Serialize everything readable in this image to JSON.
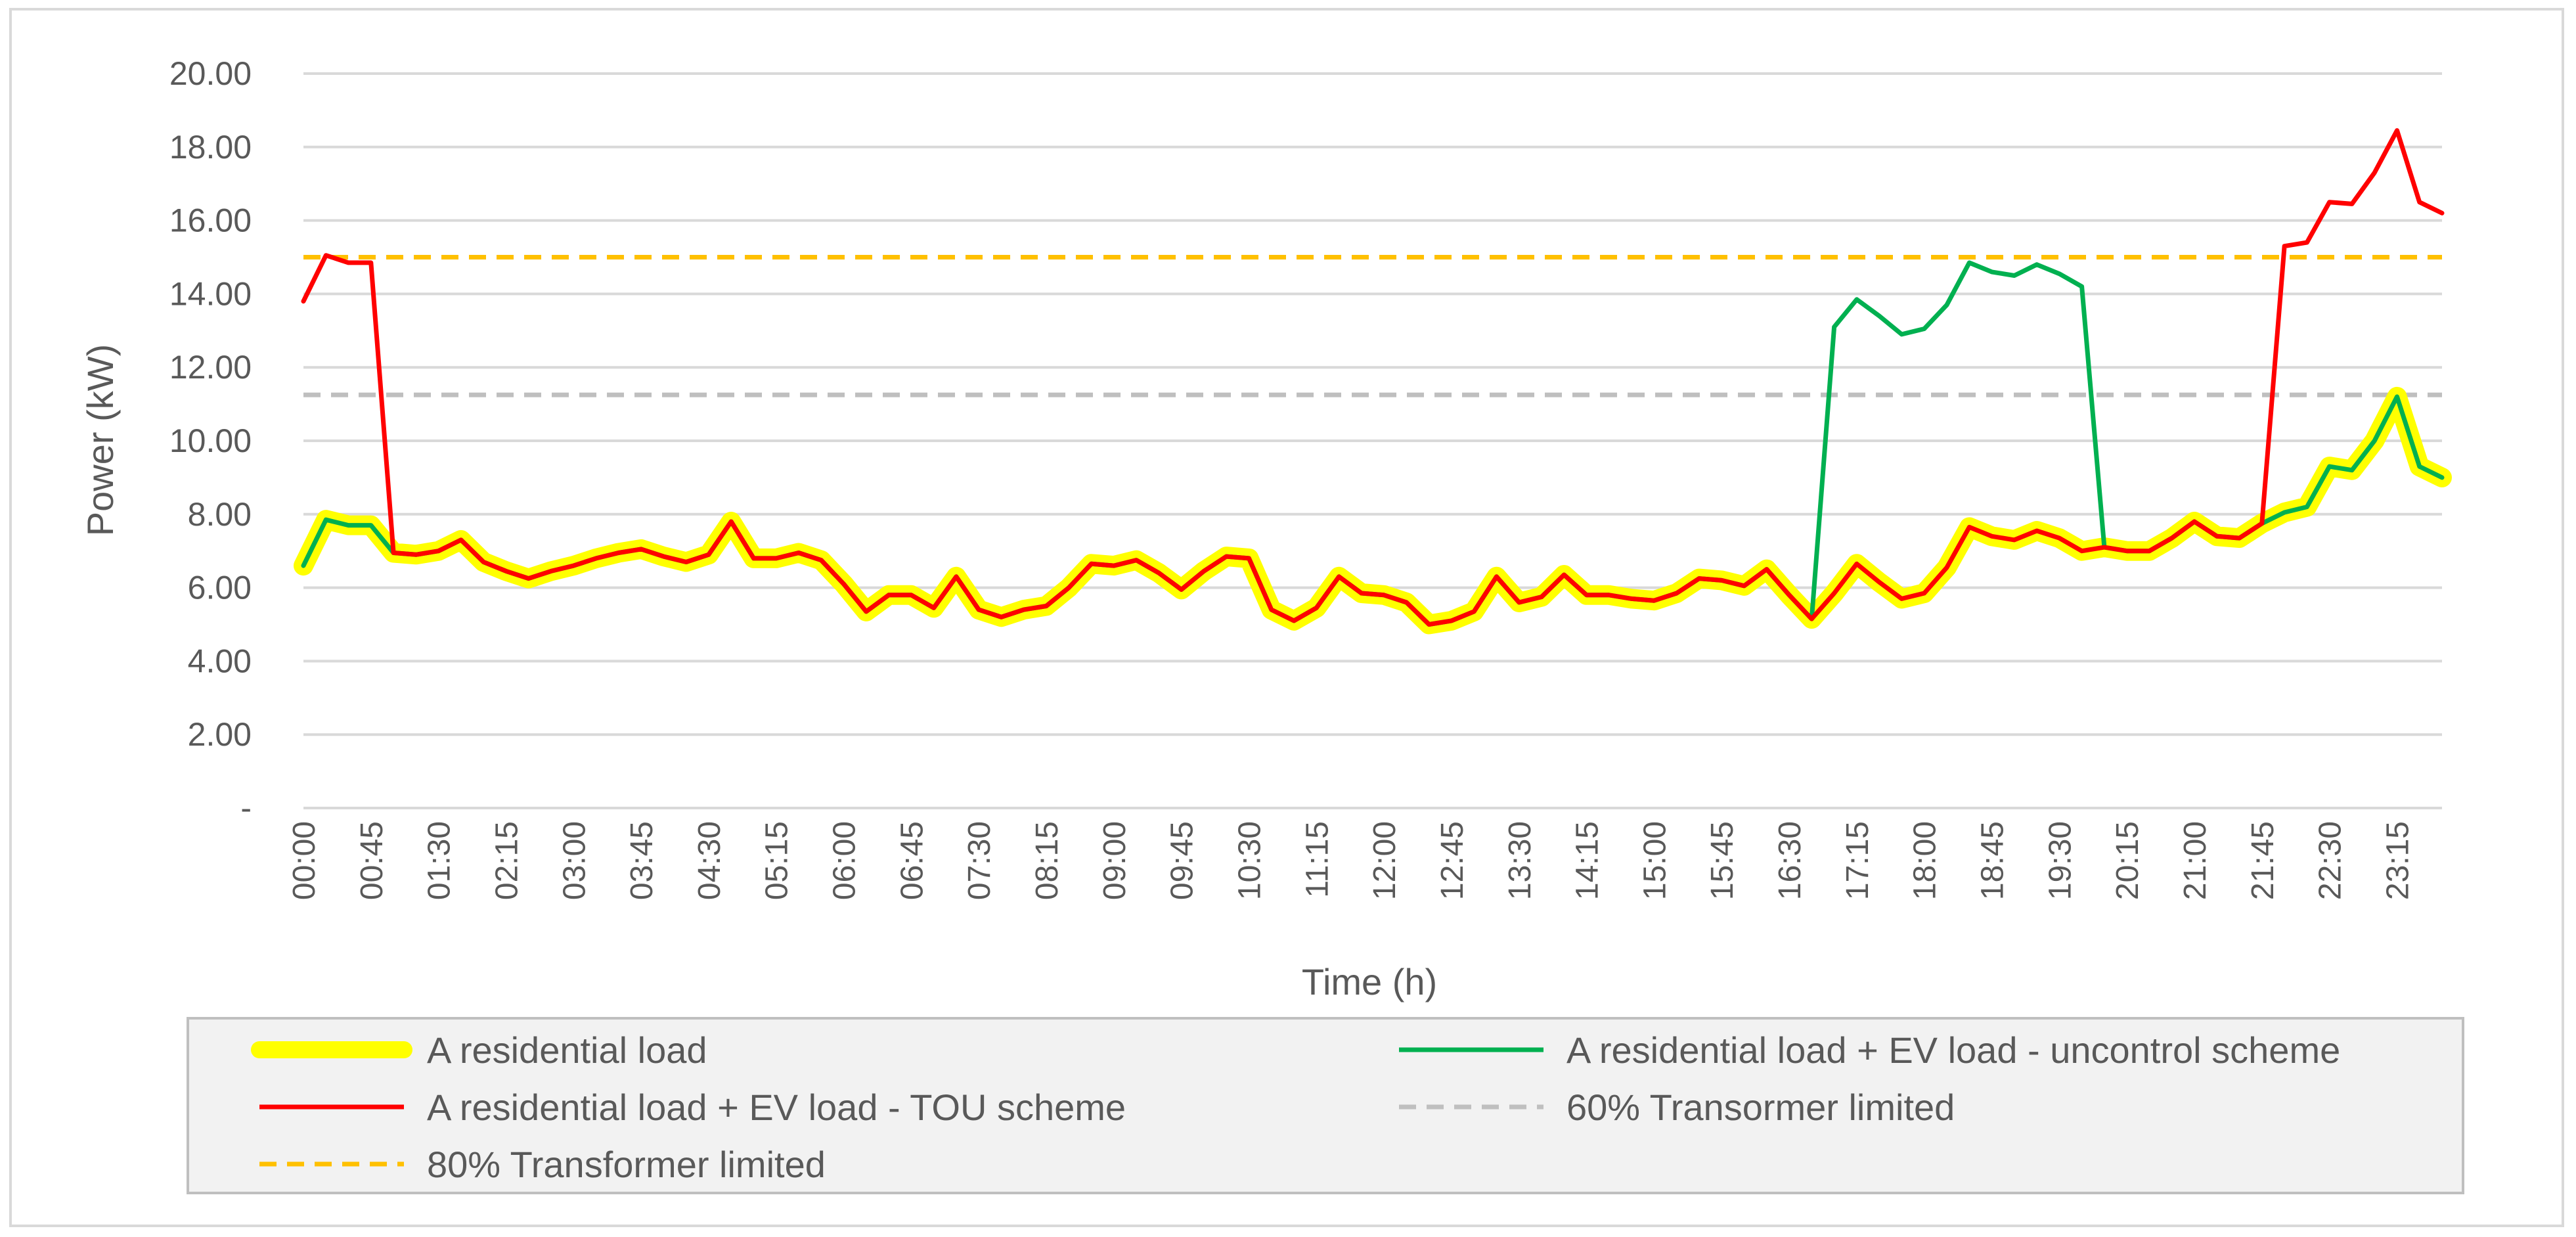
{
  "chart_data": {
    "type": "line",
    "title": "",
    "xlabel": "Time (h)",
    "ylabel": "Power (kW)",
    "ylim": [
      0,
      20
    ],
    "y_ticks": [
      "-",
      "2.00",
      "4.00",
      "6.00",
      "8.00",
      "10.00",
      "12.00",
      "14.00",
      "16.00",
      "18.00",
      "20.00"
    ],
    "x_tick_labels": [
      "00:00",
      "00:45",
      "01:30",
      "02:15",
      "03:00",
      "03:45",
      "04:30",
      "05:15",
      "06:00",
      "06:45",
      "07:30",
      "08:15",
      "09:00",
      "09:45",
      "10:30",
      "11:15",
      "12:00",
      "12:45",
      "13:30",
      "14:15",
      "15:00",
      "15:45",
      "16:30",
      "17:15",
      "18:00",
      "18:45",
      "19:30",
      "20:15",
      "21:00",
      "21:45",
      "22:30",
      "23:15"
    ],
    "x_interval_minutes": 15,
    "grid": true,
    "legend_position": "bottom",
    "series": [
      {
        "name": "A residential load",
        "color": "#ffff00",
        "style": "thick",
        "values": [
          6.6,
          7.85,
          7.7,
          7.7,
          6.95,
          6.9,
          7.0,
          7.3,
          6.7,
          6.45,
          6.25,
          6.45,
          6.6,
          6.8,
          6.95,
          7.05,
          6.85,
          6.7,
          6.9,
          7.8,
          6.8,
          6.8,
          6.95,
          6.75,
          6.1,
          5.35,
          5.8,
          5.8,
          5.45,
          6.3,
          5.4,
          5.2,
          5.4,
          5.5,
          6.0,
          6.65,
          6.6,
          6.75,
          6.4,
          5.95,
          6.45,
          6.85,
          6.8,
          5.4,
          5.1,
          5.45,
          6.3,
          5.85,
          5.8,
          5.6,
          5.0,
          5.1,
          5.35,
          6.3,
          5.6,
          5.75,
          6.35,
          5.8,
          5.8,
          5.7,
          5.65,
          5.85,
          6.25,
          6.2,
          6.05,
          6.5,
          5.8,
          5.15,
          5.85,
          6.65,
          6.15,
          5.7,
          5.85,
          6.55,
          7.65,
          7.4,
          7.3,
          7.55,
          7.35,
          7.0,
          7.1,
          7.0,
          7.0,
          7.35,
          7.8,
          7.4,
          7.35,
          7.75,
          8.05,
          8.2,
          9.3,
          9.2,
          10.0,
          11.2,
          9.3,
          9.0
        ]
      },
      {
        "name": "A residential load + EV load - uncontrol scheme",
        "color": "#00b050",
        "style": "solid",
        "values": [
          6.6,
          7.85,
          7.7,
          7.7,
          6.95,
          6.9,
          7.0,
          7.3,
          6.7,
          6.45,
          6.25,
          6.45,
          6.6,
          6.8,
          6.95,
          7.05,
          6.85,
          6.7,
          6.9,
          7.8,
          6.8,
          6.8,
          6.95,
          6.75,
          6.1,
          5.35,
          5.8,
          5.8,
          5.45,
          6.3,
          5.4,
          5.2,
          5.4,
          5.5,
          6.0,
          6.65,
          6.6,
          6.75,
          6.4,
          5.95,
          6.45,
          6.85,
          6.8,
          5.4,
          5.1,
          5.45,
          6.3,
          5.85,
          5.8,
          5.6,
          5.0,
          5.1,
          5.35,
          6.3,
          5.6,
          5.75,
          6.35,
          5.8,
          5.8,
          5.7,
          5.65,
          5.85,
          6.25,
          6.2,
          6.05,
          6.5,
          5.8,
          5.15,
          13.1,
          13.85,
          13.4,
          12.9,
          13.05,
          13.7,
          14.85,
          14.6,
          14.5,
          14.8,
          14.55,
          14.2,
          7.1,
          7.0,
          7.0,
          7.35,
          7.8,
          7.4,
          7.35,
          7.75,
          8.05,
          8.2,
          9.3,
          9.2,
          10.0,
          11.2,
          9.3,
          9.0
        ]
      },
      {
        "name": "A residential load + EV load - TOU scheme",
        "color": "#ff0000",
        "style": "solid",
        "values": [
          13.8,
          15.05,
          14.85,
          14.85,
          6.95,
          6.9,
          7.0,
          7.3,
          6.7,
          6.45,
          6.25,
          6.45,
          6.6,
          6.8,
          6.95,
          7.05,
          6.85,
          6.7,
          6.9,
          7.8,
          6.8,
          6.8,
          6.95,
          6.75,
          6.1,
          5.35,
          5.8,
          5.8,
          5.45,
          6.3,
          5.4,
          5.2,
          5.4,
          5.5,
          6.0,
          6.65,
          6.6,
          6.75,
          6.4,
          5.95,
          6.45,
          6.85,
          6.8,
          5.4,
          5.1,
          5.45,
          6.3,
          5.85,
          5.8,
          5.6,
          5.0,
          5.1,
          5.35,
          6.3,
          5.6,
          5.75,
          6.35,
          5.8,
          5.8,
          5.7,
          5.65,
          5.85,
          6.25,
          6.2,
          6.05,
          6.5,
          5.8,
          5.15,
          5.85,
          6.65,
          6.15,
          5.7,
          5.85,
          6.55,
          7.65,
          7.4,
          7.3,
          7.55,
          7.35,
          7.0,
          7.1,
          7.0,
          7.0,
          7.35,
          7.8,
          7.4,
          7.35,
          7.75,
          15.3,
          15.4,
          16.5,
          16.45,
          17.3,
          18.45,
          16.5,
          16.2
        ]
      },
      {
        "name": "60% Transormer limited",
        "color": "#bfbfbf",
        "style": "dashed",
        "constant": 11.25
      },
      {
        "name": "80% Transformer limited",
        "color": "#ffc000",
        "style": "dashed",
        "constant": 15.0
      }
    ]
  },
  "colors": {
    "grid": "#d9d9d9",
    "text": "#595959",
    "legend_bg": "#f2f2f2",
    "legend_border": "#bfbfbf"
  }
}
